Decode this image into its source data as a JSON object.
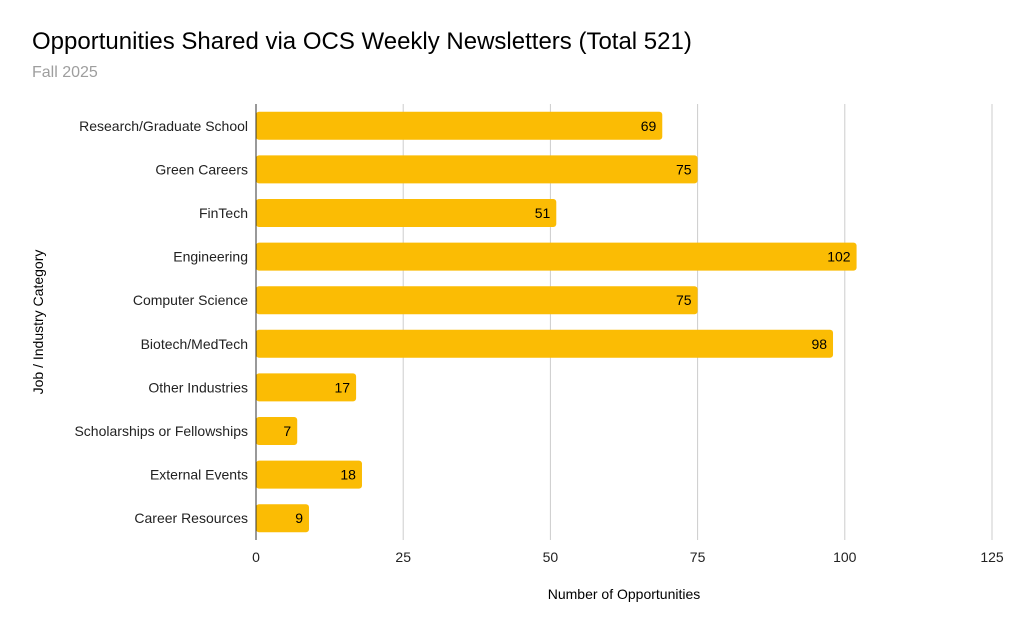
{
  "chart_data": {
    "type": "bar",
    "orientation": "horizontal",
    "title": "Opportunities Shared via OCS Weekly Newsletters (Total 521)",
    "subtitle": "Fall 2025",
    "xlabel": "Number of Opportunities",
    "ylabel": "Job / Industry Category",
    "categories": [
      "Research/Graduate School",
      "Green Careers",
      "FinTech",
      "Engineering",
      "Computer Science",
      "Biotech/MedTech",
      "Other Industries",
      "Scholarships or Fellowships",
      "External Events",
      "Career Resources"
    ],
    "values": [
      69,
      75,
      51,
      102,
      75,
      98,
      17,
      7,
      18,
      9
    ],
    "xlim": [
      0,
      125
    ],
    "xticks": [
      0,
      25,
      50,
      75,
      100,
      125
    ],
    "grid": true,
    "legend": "none",
    "bar_color": "#fbbc04",
    "grid_color": "#cccccc"
  }
}
